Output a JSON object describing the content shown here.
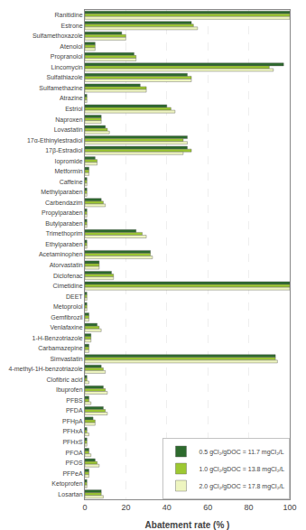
{
  "chart_data": {
    "type": "bar",
    "orientation": "horizontal",
    "categories": [
      "Ranitidine",
      "Estrone",
      "Sulfamethoxazole",
      "Atenolol",
      "Propranolol",
      "Lincomycin",
      "Sulfathiazole",
      "Sulfamethazine",
      "Atrazine",
      "Estriol",
      "Naproxen",
      "Lovastatin",
      "17α-Ethinylestradiol",
      "17β-Estradiol",
      "Iopromide",
      "Metformin",
      "Caffeine",
      "Methylparaben",
      "Carbendazim",
      "Propylparaben",
      "Butylparaben",
      "Trimethoprim",
      "Ethylparaben",
      "Acetaminophen",
      "Atorvastatin",
      "Diclofenac",
      "Cimetidine",
      "DEET",
      "Metoprolol",
      "Gemfibrozil",
      "Venlafaxine",
      "1-H-Benzotriazole",
      "Carbamazepine",
      "Simvastatin",
      "4-methyl-1H-benzotriazole",
      "Clofibric acid",
      "Ibuprofen",
      "PFBS",
      "PFDA",
      "PFHpA",
      "PFHxA",
      "PFHxS",
      "PFOA",
      "PFOS",
      "PFPeA",
      "Ketoprofen",
      "Losartan"
    ],
    "series": [
      {
        "name": "0.5 gCl₂/gDOC = 11.7 mgCl₂/L",
        "color": "#2d6a2d",
        "values": [
          100,
          52,
          18,
          5,
          24,
          97,
          50,
          27,
          1,
          40,
          8,
          10,
          50,
          50,
          5,
          2,
          1,
          1,
          8,
          1,
          1,
          25,
          1,
          32,
          7,
          13,
          100,
          1,
          1,
          2,
          6,
          3,
          2,
          93,
          8,
          1,
          9,
          2,
          9,
          4,
          1,
          1,
          2,
          5,
          2,
          1,
          8
        ]
      },
      {
        "name": "1.0 gCl₂/gDOC = 13.8 mgCl₂/L",
        "color": "#9dc832",
        "values": [
          100,
          53,
          20,
          5,
          25,
          90,
          52,
          30,
          1,
          42,
          8,
          11,
          48,
          52,
          6,
          2,
          1,
          1,
          9,
          1,
          1,
          28,
          1,
          32,
          7,
          14,
          100,
          1,
          1,
          2,
          7,
          3,
          2,
          93,
          9,
          1,
          10,
          2,
          10,
          5,
          1,
          1,
          2,
          6,
          2,
          1,
          8
        ]
      },
      {
        "name": "2.0 gCl₂/gDOC = 17.8 mgCl₂/L",
        "color": "#eef5c0",
        "values": [
          100,
          55,
          20,
          5,
          25,
          92,
          52,
          30,
          1,
          44,
          8,
          12,
          50,
          48,
          6,
          2,
          1,
          1,
          10,
          1,
          1,
          30,
          1,
          33,
          7,
          14,
          100,
          1,
          1,
          2,
          8,
          3,
          2,
          94,
          10,
          2,
          11,
          3,
          11,
          5,
          2,
          1,
          3,
          7,
          2,
          1,
          9
        ]
      }
    ],
    "xlabel": "Abatement rate (% )",
    "xlim": [
      0,
      100
    ],
    "xticks": [
      0,
      20,
      40,
      60,
      80,
      100
    ],
    "grid": true,
    "legend": "lower right"
  }
}
